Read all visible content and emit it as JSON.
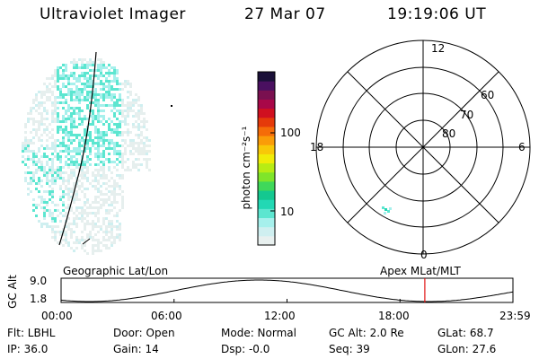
{
  "header": {
    "title": "Ultraviolet Imager",
    "date": "27 Mar 07",
    "time": "19:19:06 UT"
  },
  "colorbar": {
    "unit_label": "photon cm⁻²s⁻¹",
    "ticks": [
      {
        "label": "100",
        "value": 100
      },
      {
        "label": "10",
        "value": 10
      }
    ],
    "colors": [
      "#e8f0ef",
      "#cfeff0",
      "#a6f0ec",
      "#5ce6d0",
      "#22d8b4",
      "#14c890",
      "#3fd85a",
      "#7fe52a",
      "#b8ec14",
      "#f0ec08",
      "#f8c808",
      "#fa9c08",
      "#f56c08",
      "#e53a0a",
      "#d01020",
      "#a80848",
      "#7a1050",
      "#4a1060",
      "#1a1038"
    ]
  },
  "polar": {
    "ring_labels": [
      "80",
      "70",
      "60"
    ],
    "clock_labels": {
      "top": "12",
      "bottom": "0",
      "left": "18",
      "right": "6"
    }
  },
  "timeline": {
    "ylabel": "GC Alt",
    "ytick_top": "9.0",
    "ytick_bottom": "1.8",
    "left_caption": "Geographic Lat/Lon",
    "right_caption": "Apex MLat/MLT",
    "xticks": [
      "00:00",
      "06:00",
      "12:00",
      "18:00",
      "23:59"
    ],
    "current_time_hours": 19.32,
    "curve_color": "#000000",
    "marker_color": "#e01010"
  },
  "info": {
    "filter": "Flt: LBHL",
    "ip": "IP: 36.0",
    "door": "Door: Open",
    "gain": "Gain: 14",
    "mode": "Mode: Normal",
    "dsp": "Dsp:    -0.0",
    "gc_alt": "GC Alt: 2.0 Re",
    "seq": "Seq: 39",
    "glat": "GLat:  68.7",
    "glon": "GLon:  27.6"
  }
}
